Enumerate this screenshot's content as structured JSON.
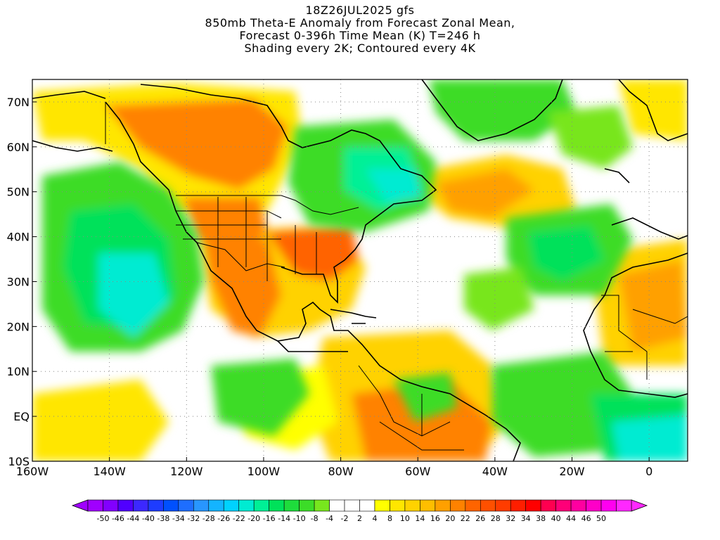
{
  "title": {
    "line1": "18Z26JUL2025 gfs",
    "line2": "850mb Theta-E Anomaly from Forecast Zonal Mean,",
    "line3": "Forecast 0-396h Time Mean (K) T=246 h",
    "line4": "Shading every 2K; Contoured every 4K"
  },
  "map": {
    "lon_range": [
      -160,
      10
    ],
    "lat_range": [
      -10,
      75
    ],
    "lon_ticks": [
      {
        "lon": -160,
        "label": "160W"
      },
      {
        "lon": -140,
        "label": "140W"
      },
      {
        "lon": -120,
        "label": "120W"
      },
      {
        "lon": -100,
        "label": "100W"
      },
      {
        "lon": -80,
        "label": "80W"
      },
      {
        "lon": -60,
        "label": "60W"
      },
      {
        "lon": -40,
        "label": "40W"
      },
      {
        "lon": -20,
        "label": "20W"
      },
      {
        "lon": 0,
        "label": "0"
      }
    ],
    "lat_ticks": [
      {
        "lat": 70,
        "label": "70N"
      },
      {
        "lat": 60,
        "label": "60N"
      },
      {
        "lat": 50,
        "label": "50N"
      },
      {
        "lat": 40,
        "label": "40N"
      },
      {
        "lat": 30,
        "label": "30N"
      },
      {
        "lat": 20,
        "label": "20N"
      },
      {
        "lat": 10,
        "label": "10N"
      },
      {
        "lat": 0,
        "label": "EQ"
      },
      {
        "lat": -10,
        "label": "10S"
      }
    ],
    "gridlines": "dotted"
  },
  "colorbar": {
    "colors": [
      "#a000ff",
      "#8200ff",
      "#5000ff",
      "#3c28ff",
      "#1e3cff",
      "#0050ff",
      "#1e6eff",
      "#2896ff",
      "#14b4ff",
      "#00d2ff",
      "#00ebd2",
      "#00f096",
      "#00e15a",
      "#1edc3c",
      "#3cdc28",
      "#78e61e",
      "#ffffff",
      "#ffffff",
      "#ffffff",
      "#ffff00",
      "#ffe600",
      "#ffd200",
      "#ffbe00",
      "#ffa000",
      "#ff8200",
      "#ff6400",
      "#ff5000",
      "#ff3c00",
      "#ff1e00",
      "#ff0000",
      "#ff0050",
      "#ff0078",
      "#ff00a0",
      "#ff00c8",
      "#ff00f0",
      "#ff28ff"
    ],
    "labels": [
      "-50",
      "-46",
      "-44",
      "-40",
      "-38",
      "-34",
      "-32",
      "-28",
      "-26",
      "-22",
      "-20",
      "-16",
      "-14",
      "-10",
      "-8",
      "-4",
      "-2",
      "2",
      "4",
      "8",
      "10",
      "14",
      "16",
      "20",
      "22",
      "26",
      "28",
      "32",
      "34",
      "38",
      "40",
      "44",
      "46",
      "50"
    ]
  }
}
